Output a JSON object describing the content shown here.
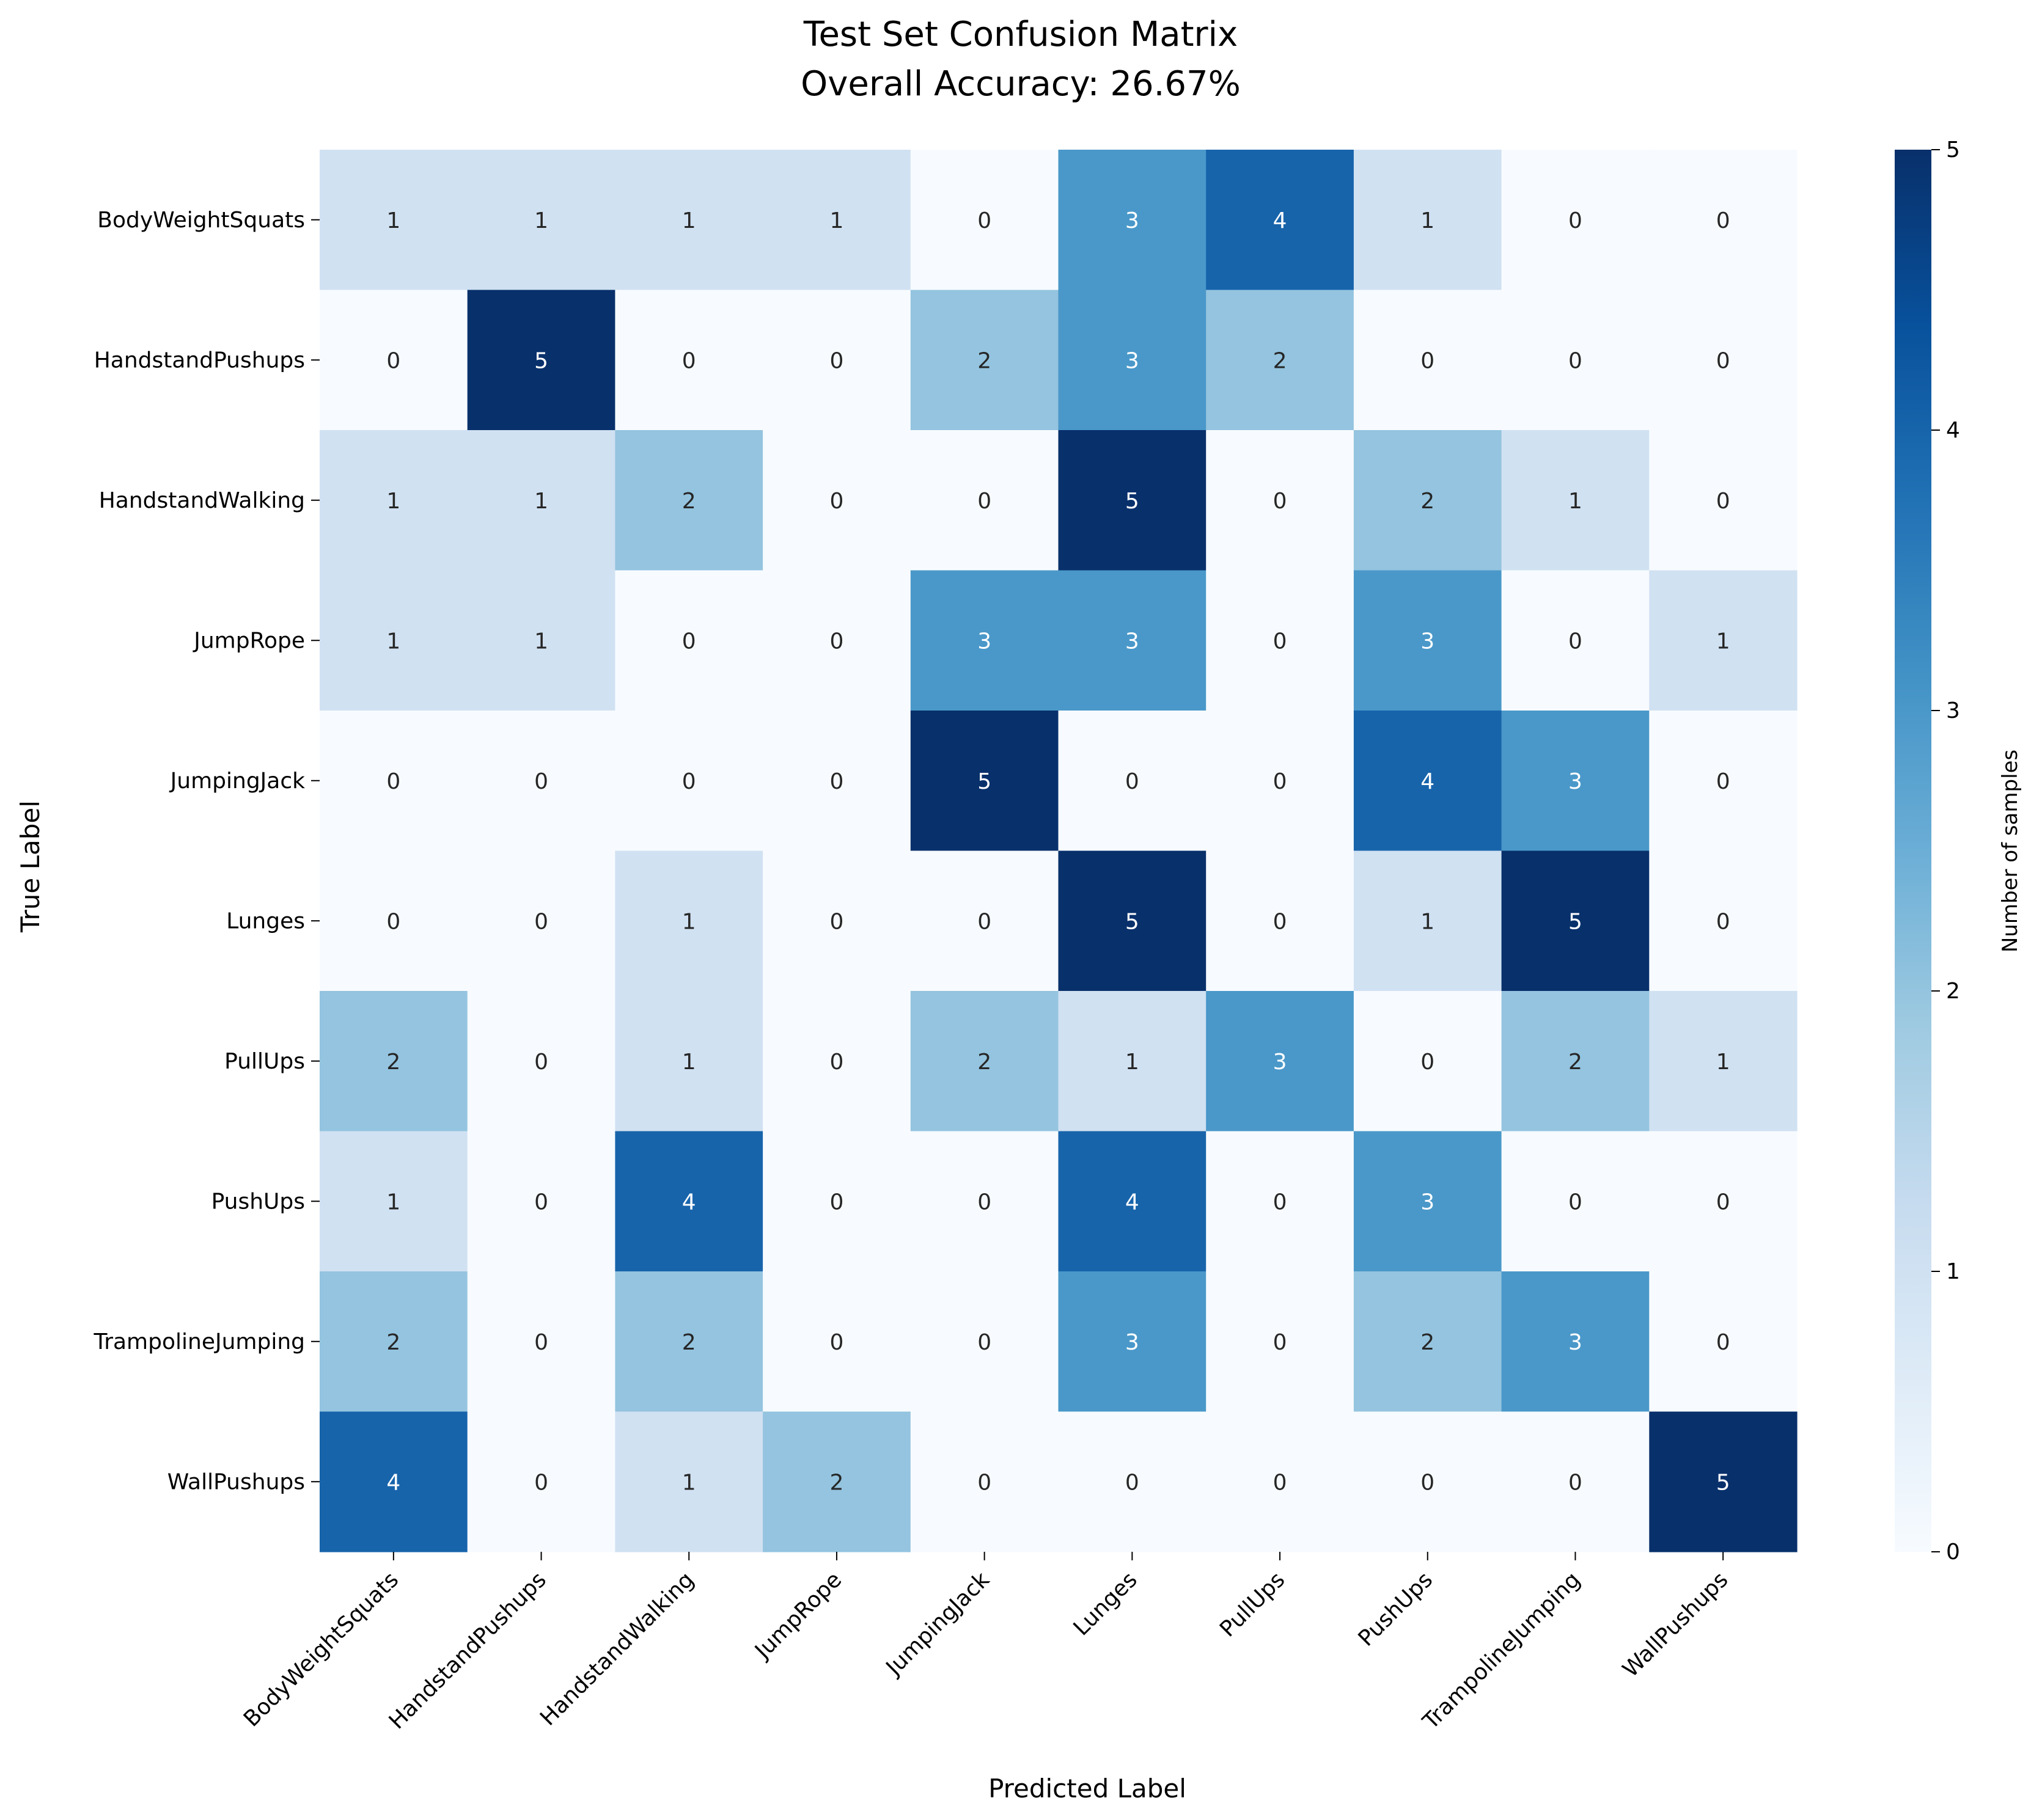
{
  "chart_data": {
    "type": "heatmap",
    "title": "Test Set Confusion Matrix",
    "subtitle": "Overall Accuracy: 26.67%",
    "xlabel": "Predicted Label",
    "ylabel": "True Label",
    "x_categories": [
      "BodyWeightSquats",
      "HandstandPushups",
      "HandstandWalking",
      "JumpRope",
      "JumpingJack",
      "Lunges",
      "PullUps",
      "PushUps",
      "TrampolineJumping",
      "WallPushups"
    ],
    "y_categories": [
      "BodyWeightSquats",
      "HandstandPushups",
      "HandstandWalking",
      "JumpRope",
      "JumpingJack",
      "Lunges",
      "PullUps",
      "PushUps",
      "TrampolineJumping",
      "WallPushups"
    ],
    "values": [
      [
        1,
        1,
        1,
        1,
        0,
        3,
        4,
        1,
        0,
        0
      ],
      [
        0,
        5,
        0,
        0,
        2,
        3,
        2,
        0,
        0,
        0
      ],
      [
        1,
        1,
        2,
        0,
        0,
        5,
        0,
        2,
        1,
        0
      ],
      [
        1,
        1,
        0,
        0,
        3,
        3,
        0,
        3,
        0,
        1
      ],
      [
        0,
        0,
        0,
        0,
        5,
        0,
        0,
        4,
        3,
        0
      ],
      [
        0,
        0,
        1,
        0,
        0,
        5,
        0,
        1,
        5,
        0
      ],
      [
        2,
        0,
        1,
        0,
        2,
        1,
        3,
        0,
        2,
        1
      ],
      [
        1,
        0,
        4,
        0,
        0,
        4,
        0,
        3,
        0,
        0
      ],
      [
        2,
        0,
        2,
        0,
        0,
        3,
        0,
        2,
        3,
        0
      ],
      [
        4,
        0,
        1,
        2,
        0,
        0,
        0,
        0,
        0,
        5
      ]
    ],
    "colorbar": {
      "label": "Number of samples",
      "range": [
        0,
        5
      ],
      "ticks": [
        "0",
        "1",
        "2",
        "3",
        "4",
        "5"
      ],
      "colormap": "Blues",
      "color_stops": [
        "#f7fbff",
        "#deebf7",
        "#c6dbef",
        "#9ecae1",
        "#6baed6",
        "#4292c6",
        "#2171b5",
        "#08519c",
        "#08306b"
      ]
    },
    "grid": false,
    "annotations": true
  }
}
